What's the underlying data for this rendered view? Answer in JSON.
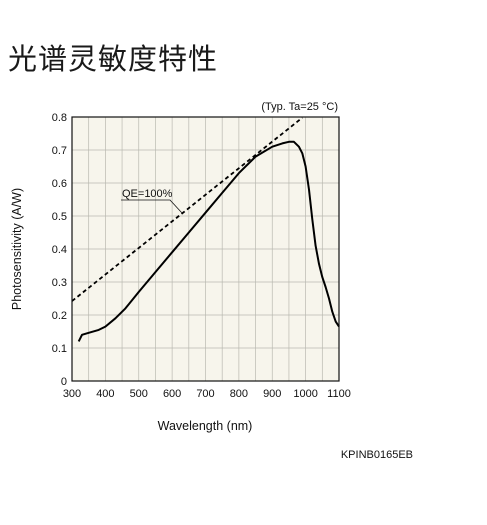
{
  "page": {
    "title": "光谱灵敏度特性"
  },
  "chart_data": {
    "type": "line",
    "xlabel": "Wavelength (nm)",
    "ylabel": "Photosensitivity (A/W)",
    "xlim": [
      300,
      1100
    ],
    "ylim": [
      0,
      0.8
    ],
    "x_ticks": [
      "300",
      "400",
      "500",
      "600",
      "700",
      "800",
      "900",
      "1000",
      "1100"
    ],
    "y_ticks": [
      "0",
      "0.1",
      "0.2",
      "0.3",
      "0.4",
      "0.5",
      "0.6",
      "0.7",
      "0.8"
    ],
    "grid": true,
    "annotation": "(Typ. Ta=25 °C)",
    "series": [
      {
        "name": "",
        "style": "solid",
        "x": [
          320,
          330,
          350,
          380,
          400,
          430,
          460,
          500,
          550,
          600,
          650,
          700,
          750,
          800,
          850,
          900,
          930,
          950,
          965,
          980,
          990,
          1000,
          1010,
          1020,
          1030,
          1040,
          1050,
          1060,
          1070,
          1080,
          1090,
          1100
        ],
        "y": [
          0.12,
          0.14,
          0.146,
          0.155,
          0.165,
          0.19,
          0.22,
          0.27,
          0.33,
          0.39,
          0.45,
          0.51,
          0.57,
          0.63,
          0.68,
          0.71,
          0.72,
          0.725,
          0.725,
          0.71,
          0.69,
          0.65,
          0.58,
          0.49,
          0.41,
          0.355,
          0.315,
          0.285,
          0.25,
          0.21,
          0.18,
          0.165
        ]
      },
      {
        "name": "QE=100%",
        "style": "dashed",
        "x": [
          300,
          990
        ],
        "y": [
          0.242,
          0.798
        ]
      }
    ],
    "label": "QE=100%",
    "code": "KPINB0165EB"
  }
}
